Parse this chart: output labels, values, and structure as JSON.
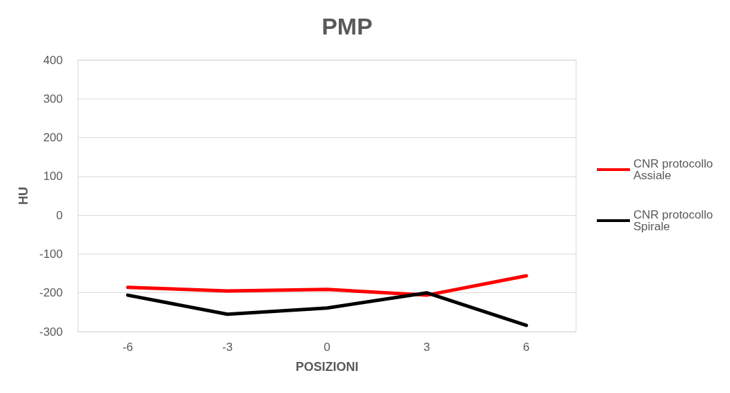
{
  "chart_data": {
    "type": "line",
    "title": "PMP",
    "xlabel": "POSIZIONI",
    "ylabel": "HU",
    "categories": [
      "-6",
      "-3",
      "0",
      "3",
      "6"
    ],
    "series": [
      {
        "name": "CNR protocollo Assiale",
        "color": "#ff0000",
        "values": [
          -186,
          -195,
          -191,
          -206,
          -156
        ]
      },
      {
        "name": "CNR protocollo Spirale",
        "color": "#000000",
        "values": [
          -206,
          -255,
          -239,
          -200,
          -284
        ]
      }
    ],
    "ylim": [
      -300,
      400
    ],
    "yticks": [
      -300,
      -200,
      -100,
      0,
      100,
      200,
      300,
      400
    ],
    "grid": "y",
    "legend": "right",
    "marker": "none",
    "line_style": "solid"
  }
}
